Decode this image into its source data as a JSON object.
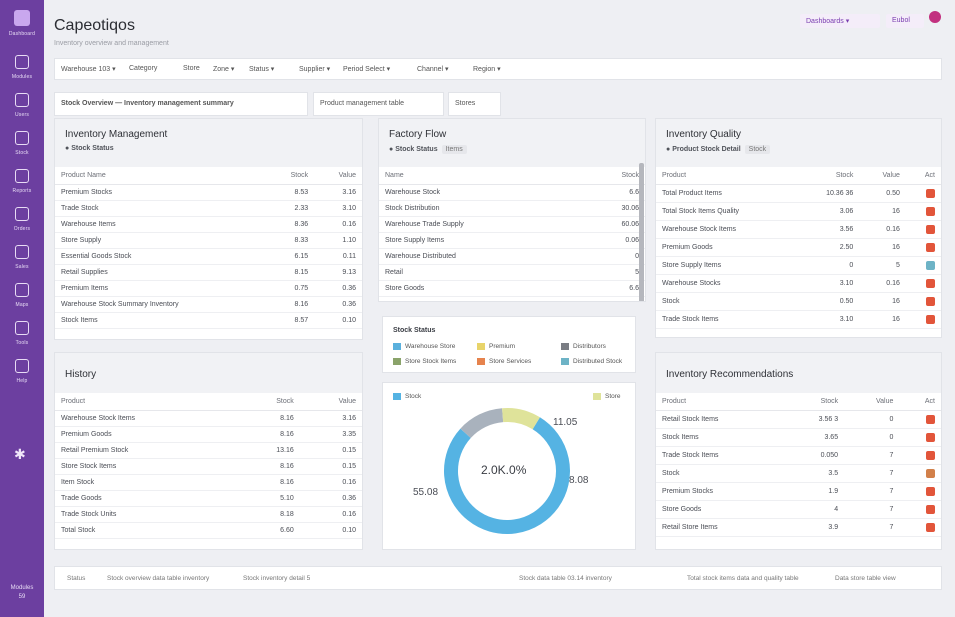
{
  "sidebar": {
    "logo_label": "Dashboard",
    "items": [
      {
        "label": "Modules",
        "icon": "grid-icon"
      },
      {
        "label": "Users",
        "icon": "user-icon"
      },
      {
        "label": "Stock",
        "icon": "box-icon"
      },
      {
        "label": "Reports",
        "icon": "chart-icon"
      },
      {
        "label": "Orders",
        "icon": "cart-icon"
      },
      {
        "label": "Sales",
        "icon": "tag-icon"
      },
      {
        "label": "Maps",
        "icon": "map-icon"
      },
      {
        "label": "Tools",
        "icon": "wrench-icon"
      },
      {
        "label": "Help",
        "icon": "help-icon"
      }
    ],
    "footer_line1": "Modules",
    "footer_line2": "59"
  },
  "header": {
    "title": "Capeotiqos",
    "subtitle": "Inventory overview and management",
    "btn_primary": "Dashboards ▾",
    "btn_secondary": "Eubol"
  },
  "filters": [
    "Warehouse 103 ▾",
    "Category",
    "Store",
    "Zone ▾",
    "Status ▾",
    "Supplier ▾",
    "Period Select ▾",
    "Channel ▾",
    "Region ▾"
  ],
  "tabs": [
    {
      "label": "Stock Overview — Inventory management summary",
      "active": true
    },
    {
      "label": "Product management table",
      "active": false
    },
    {
      "label": "Stores",
      "active": false
    }
  ],
  "panel_inventory": {
    "title": "Inventory Management",
    "sub": "Stock Status",
    "columns": [
      "Product Name",
      "Stock",
      "Value"
    ],
    "rows": [
      [
        "Premium Stocks",
        "8.53",
        "3.16"
      ],
      [
        "Trade Stock",
        "2.33",
        "3.10"
      ],
      [
        "Warehouse Items",
        "8.36",
        "0.16"
      ],
      [
        "Store Supply",
        "8.33",
        "1.10"
      ],
      [
        "Essential Goods Stock",
        "6.15",
        "0.11"
      ],
      [
        "Retail Supplies",
        "8.15",
        "9.13"
      ],
      [
        "Premium Items",
        "0.75",
        "0.36"
      ],
      [
        "Warehouse Stock Summary Inventory",
        "8.16",
        "0.36"
      ],
      [
        "Stock Items",
        "8.57",
        "0.10"
      ]
    ]
  },
  "panel_history": {
    "title": "History",
    "columns": [
      "Product",
      "Stock",
      "Value"
    ],
    "rows": [
      [
        "Warehouse Stock Items",
        "8.16",
        "3.16"
      ],
      [
        "Premium Goods",
        "8.16",
        "3.35"
      ],
      [
        "Retail Premium Stock",
        "13.16",
        "0.15"
      ],
      [
        "Store Stock Items",
        "8.16",
        "0.15"
      ],
      [
        "Item Stock",
        "8.16",
        "0.16"
      ],
      [
        "Trade Goods",
        "5.10",
        "0.36"
      ],
      [
        "Trade Stock Units",
        "8.18",
        "0.16"
      ],
      [
        "Total Stock",
        "6.60",
        "0.10"
      ]
    ]
  },
  "panel_factory": {
    "title": "Factory Flow",
    "sub": "Stock Status",
    "pill": "Items",
    "columns": [
      "Name",
      "Stock"
    ],
    "rows": [
      [
        "Warehouse Stock",
        "6.6"
      ],
      [
        "Stock Distribution",
        "30.06"
      ],
      [
        "Warehouse Trade Supply",
        "60.06"
      ],
      [
        "Store Supply Items",
        "0.06"
      ],
      [
        "Warehouse Distributed",
        "0"
      ],
      [
        "Retail",
        "5"
      ],
      [
        "Store Goods",
        "6.6"
      ]
    ]
  },
  "panel_legend": {
    "title": "Stock Status",
    "items": [
      {
        "label": "Warehouse Store",
        "color": "#5ab0dd"
      },
      {
        "label": "Premium",
        "color": "#e8d46a"
      },
      {
        "label": "Distributors",
        "color": "#7a7d84"
      },
      {
        "label": "Store Stock Items",
        "color": "#8aa36a"
      },
      {
        "label": "Store Services",
        "color": "#e6834d"
      },
      {
        "label": "Distributed Stock",
        "color": "#6db3c6"
      }
    ]
  },
  "panel_donut": {
    "legend_left": "Stock",
    "legend_right": "Store",
    "center": "2.0K.0%",
    "label_top": "11.05",
    "label_right": "8.08",
    "label_left": "55.08",
    "segments": [
      {
        "value": 78,
        "color": "#55b3e3"
      },
      {
        "value": 12,
        "color": "#a9b2bd"
      },
      {
        "value": 10,
        "color": "#dfe39a"
      }
    ]
  },
  "panel_quality": {
    "title": "Inventory Quality",
    "sub": "Product Stock Detail",
    "pill": "Stock",
    "columns": [
      "Product",
      "Stock",
      "Value",
      "Act"
    ],
    "rows": [
      {
        "cells": [
          "Total Product Items",
          "10.36 36",
          "0.50"
        ],
        "color": "#e2553a"
      },
      {
        "cells": [
          "Total Stock Items Quality",
          "3.06",
          "16"
        ],
        "color": "#e2553a"
      },
      {
        "cells": [
          "Warehouse Stock Items",
          "3.56",
          "0.16"
        ],
        "color": "#e2553a"
      },
      {
        "cells": [
          "Premium Goods",
          "2.50",
          "16"
        ],
        "color": "#e2553a"
      },
      {
        "cells": [
          "Store Supply Items",
          "0",
          "5"
        ],
        "color": "#6db3c6"
      },
      {
        "cells": [
          "Warehouse Stocks",
          "3.10",
          "0.16"
        ],
        "color": "#e2553a"
      },
      {
        "cells": [
          "Stock",
          "0.50",
          "16"
        ],
        "color": "#e2553a"
      },
      {
        "cells": [
          "Trade Stock Items",
          "3.10",
          "16"
        ],
        "color": "#e2553a"
      }
    ]
  },
  "panel_recommend": {
    "title": "Inventory Recommendations",
    "columns": [
      "Product",
      "Stock",
      "Value",
      "Act"
    ],
    "rows": [
      {
        "cells": [
          "Retail Stock Items",
          "3.56 3",
          "0"
        ],
        "color": "#e2553a"
      },
      {
        "cells": [
          "Stock Items",
          "3.65",
          "0"
        ],
        "color": "#e2553a"
      },
      {
        "cells": [
          "Trade Stock Items",
          "0.050",
          "7"
        ],
        "color": "#e2553a"
      },
      {
        "cells": [
          "Stock",
          "3.5",
          "7"
        ],
        "color": "#d2804a"
      },
      {
        "cells": [
          "Premium Stocks",
          "1.9",
          "7"
        ],
        "color": "#e2553a"
      },
      {
        "cells": [
          "Store Goods",
          "4",
          "7"
        ],
        "color": "#e2553a"
      },
      {
        "cells": [
          "Retail Store Items",
          "3.9",
          "7"
        ],
        "color": "#e2553a"
      }
    ]
  },
  "footer": {
    "left1": "Status",
    "left2": "Stock overview data table inventory",
    "left3": "Stock inventory detail 5",
    "right1": "Stock data table 03.14 inventory",
    "right2": "Total stock items data and quality table",
    "right3": "Data store table view"
  }
}
